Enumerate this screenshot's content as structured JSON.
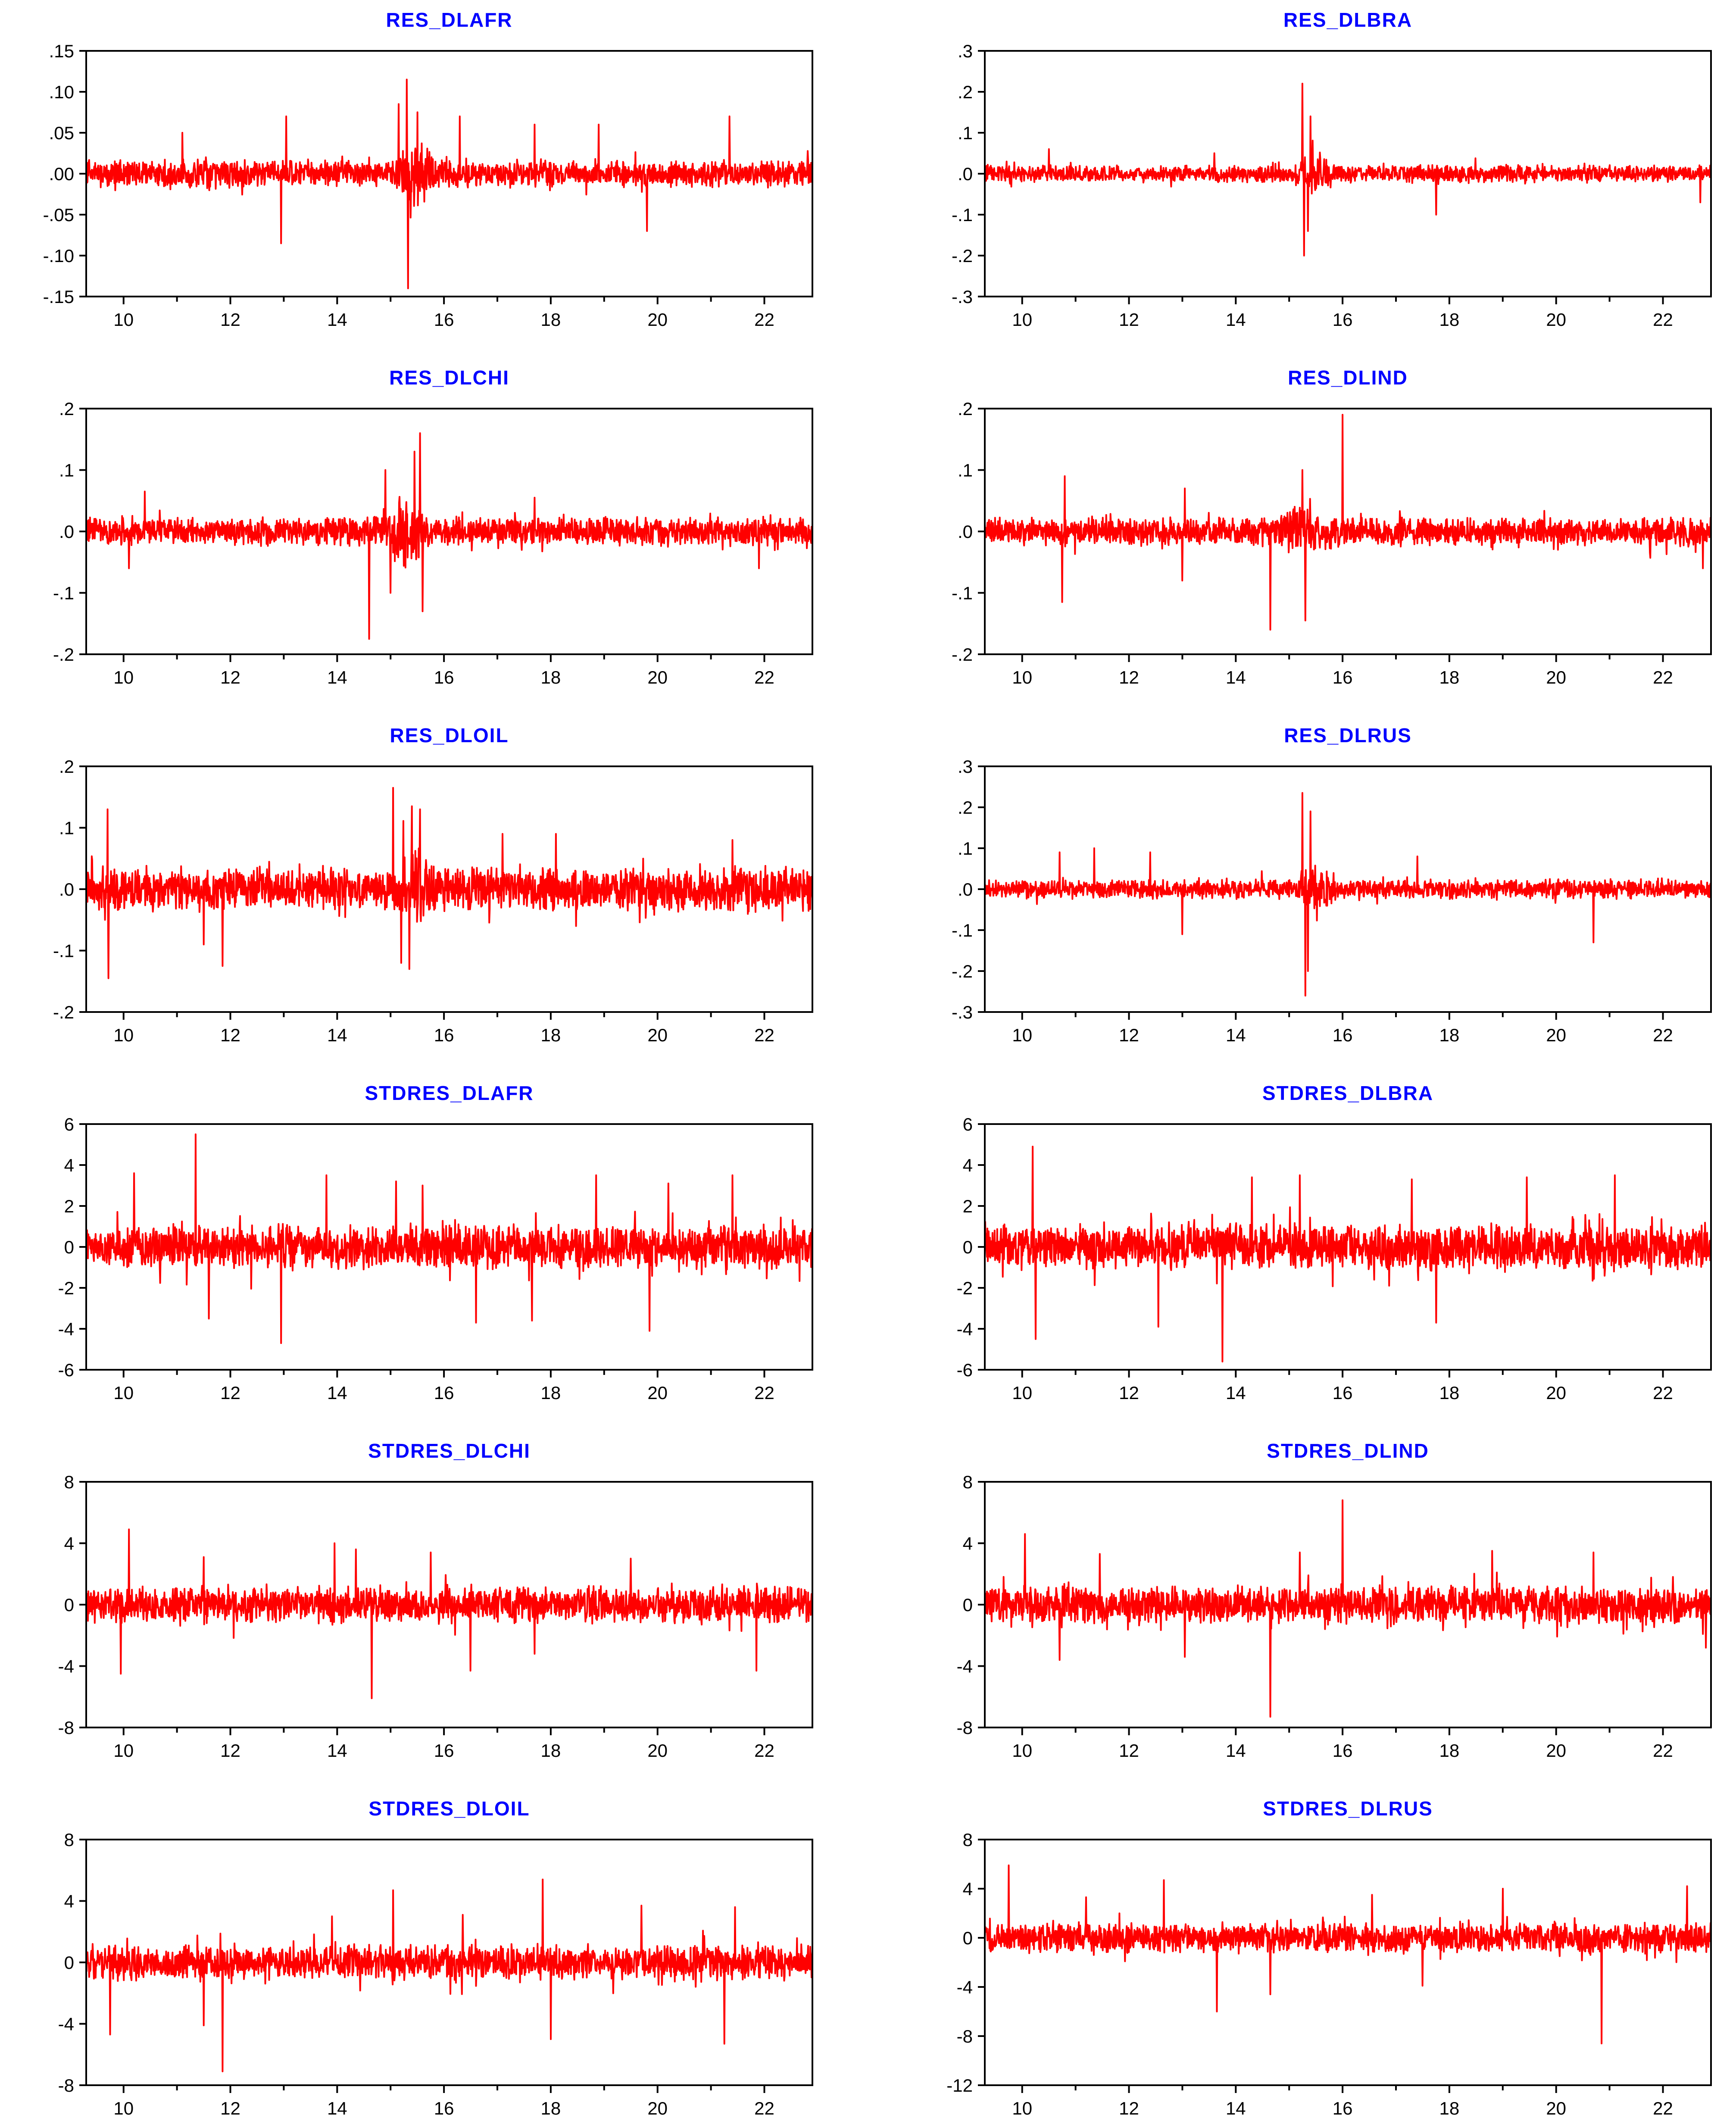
{
  "figure": {
    "colors": {
      "series": "#ff0000",
      "title": "#0000ff",
      "axis": "#000000"
    }
  },
  "chart_data": [
    {
      "type": "line",
      "title": "RES_DLAFR",
      "ylim": [
        -0.15,
        0.15
      ],
      "yticks": [
        0.15,
        0.1,
        0.05,
        0.0,
        -0.05,
        -0.1,
        -0.15
      ],
      "ytick_labels": [
        ".15",
        ".10",
        ".05",
        ".00",
        "-.05",
        "-.10",
        "-.15"
      ],
      "xlim": [
        2009.3,
        2022.9
      ],
      "xticks": [
        2010,
        2012,
        2014,
        2016,
        2018,
        2020,
        2022
      ],
      "xtick_labels": [
        "10",
        "12",
        "14",
        "16",
        "18",
        "20",
        "22"
      ],
      "series": [
        {
          "base": 0.013,
          "min": -0.14,
          "max": 0.115,
          "spikes": [
            [
              2015.3,
              0.115
            ],
            [
              2015.33,
              -0.14
            ],
            [
              2015.15,
              0.085
            ],
            [
              2015.5,
              0.075
            ],
            [
              2013.05,
              0.07
            ],
            [
              2012.95,
              -0.085
            ],
            [
              2016.3,
              0.07
            ],
            [
              2017.7,
              0.06
            ],
            [
              2019.8,
              -0.07
            ],
            [
              2021.35,
              0.07
            ],
            [
              2011.1,
              0.05
            ],
            [
              2018.9,
              0.06
            ]
          ],
          "clusters": [
            [
              2015.1,
              2015.9,
              3.5
            ]
          ]
        }
      ]
    },
    {
      "type": "line",
      "title": "RES_DLBRA",
      "ylim": [
        -0.3,
        0.3
      ],
      "yticks": [
        0.3,
        0.2,
        0.1,
        0.0,
        -0.1,
        -0.2,
        -0.3
      ],
      "ytick_labels": [
        ".3",
        ".2",
        ".1",
        ".0",
        "-.1",
        "-.2",
        "-.3"
      ],
      "xlim": [
        2009.3,
        2022.9
      ],
      "xticks": [
        2010,
        2012,
        2014,
        2016,
        2018,
        2020,
        2022
      ],
      "xtick_labels": [
        "10",
        "12",
        "14",
        "16",
        "18",
        "20",
        "22"
      ],
      "series": [
        {
          "base": 0.016,
          "min": -0.2,
          "max": 0.22,
          "spikes": [
            [
              2015.25,
              0.22
            ],
            [
              2015.28,
              -0.2
            ],
            [
              2015.4,
              0.14
            ],
            [
              2015.35,
              -0.14
            ],
            [
              2010.5,
              0.06
            ],
            [
              2017.75,
              -0.1
            ],
            [
              2013.6,
              0.05
            ],
            [
              2022.7,
              -0.07
            ]
          ],
          "clusters": [
            [
              2015.1,
              2015.9,
              3.0
            ]
          ]
        }
      ]
    },
    {
      "type": "line",
      "title": "RES_DLCHI",
      "ylim": [
        -0.2,
        0.2
      ],
      "yticks": [
        0.2,
        0.1,
        0.0,
        -0.1,
        -0.2
      ],
      "ytick_labels": [
        ".2",
        ".1",
        ".0",
        "-.1",
        "-.2"
      ],
      "xlim": [
        2009.3,
        2022.9
      ],
      "xticks": [
        2010,
        2012,
        2014,
        2016,
        2018,
        2020,
        2022
      ],
      "xtick_labels": [
        "10",
        "12",
        "14",
        "16",
        "18",
        "20",
        "22"
      ],
      "series": [
        {
          "base": 0.018,
          "min": -0.175,
          "max": 0.16,
          "spikes": [
            [
              2014.6,
              -0.175
            ],
            [
              2015.55,
              0.16
            ],
            [
              2015.45,
              0.13
            ],
            [
              2015.6,
              -0.13
            ],
            [
              2014.9,
              0.1
            ],
            [
              2015.0,
              -0.1
            ],
            [
              2010.4,
              0.065
            ],
            [
              2010.1,
              -0.06
            ],
            [
              2021.9,
              -0.06
            ],
            [
              2017.7,
              0.055
            ]
          ],
          "clusters": [
            [
              2014.6,
              2015.9,
              2.6
            ]
          ]
        }
      ]
    },
    {
      "type": "line",
      "title": "RES_DLIND",
      "ylim": [
        -0.2,
        0.2
      ],
      "yticks": [
        0.2,
        0.1,
        0.0,
        -0.1,
        -0.2
      ],
      "ytick_labels": [
        ".2",
        ".1",
        ".0",
        "-.1",
        "-.2"
      ],
      "xlim": [
        2009.3,
        2022.9
      ],
      "xticks": [
        2010,
        2012,
        2014,
        2016,
        2018,
        2020,
        2022
      ],
      "xtick_labels": [
        "10",
        "12",
        "14",
        "16",
        "18",
        "20",
        "22"
      ],
      "series": [
        {
          "base": 0.018,
          "min": -0.16,
          "max": 0.19,
          "spikes": [
            [
              2016.0,
              0.19
            ],
            [
              2014.65,
              -0.16
            ],
            [
              2015.3,
              -0.145
            ],
            [
              2010.8,
              0.09
            ],
            [
              2010.75,
              -0.115
            ],
            [
              2013.05,
              0.07
            ],
            [
              2013.0,
              -0.08
            ],
            [
              2015.25,
              0.1
            ],
            [
              2022.75,
              -0.06
            ]
          ],
          "clusters": [
            [
              2014.6,
              2016.0,
              2.2
            ]
          ]
        }
      ]
    },
    {
      "type": "line",
      "title": "RES_DLOIL",
      "ylim": [
        -0.2,
        0.2
      ],
      "yticks": [
        0.2,
        0.1,
        0.0,
        -0.1,
        -0.2
      ],
      "ytick_labels": [
        ".2",
        ".1",
        ".0",
        "-.1",
        "-.2"
      ],
      "xlim": [
        2009.3,
        2022.9
      ],
      "xticks": [
        2010,
        2012,
        2014,
        2016,
        2018,
        2020,
        2022
      ],
      "xtick_labels": [
        "10",
        "12",
        "14",
        "16",
        "18",
        "20",
        "22"
      ],
      "series": [
        {
          "base": 0.028,
          "min": -0.145,
          "max": 0.165,
          "spikes": [
            [
              2015.05,
              0.165
            ],
            [
              2009.7,
              0.13
            ],
            [
              2009.72,
              -0.145
            ],
            [
              2011.85,
              -0.125
            ],
            [
              2015.4,
              0.135
            ],
            [
              2015.55,
              0.13
            ],
            [
              2015.35,
              -0.13
            ],
            [
              2015.2,
              -0.12
            ],
            [
              2017.1,
              0.09
            ],
            [
              2018.1,
              0.09
            ],
            [
              2021.4,
              0.08
            ],
            [
              2011.5,
              -0.09
            ]
          ],
          "clusters": [
            [
              2015.0,
              2015.9,
              2.5
            ]
          ]
        }
      ]
    },
    {
      "type": "line",
      "title": "RES_DLRUS",
      "ylim": [
        -0.3,
        0.3
      ],
      "yticks": [
        0.3,
        0.2,
        0.1,
        0.0,
        -0.1,
        -0.2,
        -0.3
      ],
      "ytick_labels": [
        ".3",
        ".2",
        ".1",
        ".0",
        "-.1",
        "-.2",
        "-.3"
      ],
      "xlim": [
        2009.3,
        2022.9
      ],
      "xticks": [
        2010,
        2012,
        2014,
        2016,
        2018,
        2020,
        2022
      ],
      "xtick_labels": [
        "10",
        "12",
        "14",
        "16",
        "18",
        "20",
        "22"
      ],
      "series": [
        {
          "base": 0.018,
          "min": -0.265,
          "max": 0.235,
          "spikes": [
            [
              2015.25,
              0.235
            ],
            [
              2015.3,
              -0.26
            ],
            [
              2015.4,
              0.19
            ],
            [
              2015.35,
              -0.2
            ],
            [
              2010.7,
              0.09
            ],
            [
              2011.35,
              0.1
            ],
            [
              2012.4,
              0.09
            ],
            [
              2013.0,
              -0.11
            ],
            [
              2020.7,
              -0.13
            ],
            [
              2017.4,
              0.08
            ]
          ],
          "clusters": [
            [
              2015.1,
              2015.9,
              3.0
            ]
          ]
        }
      ]
    },
    {
      "type": "line",
      "title": "STDRES_DLAFR",
      "ylim": [
        -6,
        6
      ],
      "yticks": [
        6,
        4,
        2,
        0,
        -2,
        -4,
        -6
      ],
      "ytick_labels": [
        "6",
        "4",
        "2",
        "0",
        "-2",
        "-4",
        "-6"
      ],
      "xlim": [
        2009.3,
        2022.9
      ],
      "xticks": [
        2010,
        2012,
        2014,
        2016,
        2018,
        2020,
        2022
      ],
      "xtick_labels": [
        "10",
        "12",
        "14",
        "16",
        "18",
        "20",
        "22"
      ],
      "series": [
        {
          "base": 0.85,
          "min": -4.7,
          "max": 5.5,
          "spikes": [
            [
              2011.35,
              5.5
            ],
            [
              2012.95,
              -4.7
            ],
            [
              2019.85,
              -4.1
            ],
            [
              2010.2,
              3.6
            ],
            [
              2013.8,
              3.5
            ],
            [
              2015.1,
              3.2
            ],
            [
              2016.6,
              -3.7
            ],
            [
              2017.65,
              -3.6
            ],
            [
              2021.4,
              3.5
            ],
            [
              2015.6,
              3.0
            ],
            [
              2018.85,
              3.5
            ],
            [
              2020.2,
              3.1
            ],
            [
              2011.6,
              -3.5
            ]
          ],
          "clusters": []
        }
      ]
    },
    {
      "type": "line",
      "title": "STDRES_DLBRA",
      "ylim": [
        -6,
        6
      ],
      "yticks": [
        6,
        4,
        2,
        0,
        -2,
        -4,
        -6
      ],
      "ytick_labels": [
        "6",
        "4",
        "2",
        "0",
        "-2",
        "-4",
        "-6"
      ],
      "xlim": [
        2009.3,
        2022.9
      ],
      "xticks": [
        2010,
        2012,
        2014,
        2016,
        2018,
        2020,
        2022
      ],
      "xtick_labels": [
        "10",
        "12",
        "14",
        "16",
        "18",
        "20",
        "22"
      ],
      "series": [
        {
          "base": 0.9,
          "min": -5.6,
          "max": 4.9,
          "spikes": [
            [
              2010.2,
              4.9
            ],
            [
              2010.25,
              -4.5
            ],
            [
              2013.75,
              -5.6
            ],
            [
              2017.3,
              3.3
            ],
            [
              2017.75,
              -3.7
            ],
            [
              2012.55,
              -3.9
            ],
            [
              2015.2,
              3.5
            ],
            [
              2021.1,
              3.5
            ],
            [
              2019.45,
              3.4
            ],
            [
              2014.3,
              3.4
            ]
          ],
          "clusters": []
        }
      ]
    },
    {
      "type": "line",
      "title": "STDRES_DLCHI",
      "ylim": [
        -8,
        8
      ],
      "yticks": [
        8,
        4,
        0,
        -4,
        -8
      ],
      "ytick_labels": [
        "8",
        "4",
        "0",
        "-4",
        "-8"
      ],
      "xlim": [
        2009.3,
        2022.9
      ],
      "xticks": [
        2010,
        2012,
        2014,
        2016,
        2018,
        2020,
        2022
      ],
      "xtick_labels": [
        "10",
        "12",
        "14",
        "16",
        "18",
        "20",
        "22"
      ],
      "series": [
        {
          "base": 0.95,
          "min": -6.1,
          "max": 4.9,
          "spikes": [
            [
              2010.1,
              4.9
            ],
            [
              2009.95,
              -4.5
            ],
            [
              2014.65,
              -6.1
            ],
            [
              2016.5,
              -4.3
            ],
            [
              2013.95,
              4.0
            ],
            [
              2014.35,
              3.6
            ],
            [
              2015.75,
              3.4
            ],
            [
              2021.85,
              -4.3
            ],
            [
              2011.5,
              3.1
            ],
            [
              2017.7,
              -3.2
            ],
            [
              2019.5,
              3.0
            ]
          ],
          "clusters": []
        }
      ]
    },
    {
      "type": "line",
      "title": "STDRES_DLIND",
      "ylim": [
        -8,
        8
      ],
      "yticks": [
        8,
        4,
        0,
        -4,
        -8
      ],
      "ytick_labels": [
        "8",
        "4",
        "0",
        "-4",
        "-8"
      ],
      "xlim": [
        2009.3,
        2022.9
      ],
      "xticks": [
        2010,
        2012,
        2014,
        2016,
        2018,
        2020,
        2022
      ],
      "xtick_labels": [
        "10",
        "12",
        "14",
        "16",
        "18",
        "20",
        "22"
      ],
      "series": [
        {
          "base": 0.95,
          "min": -7.3,
          "max": 6.8,
          "spikes": [
            [
              2016.0,
              6.8
            ],
            [
              2014.65,
              -7.3
            ],
            [
              2010.05,
              4.6
            ],
            [
              2010.7,
              -3.6
            ],
            [
              2011.45,
              3.3
            ],
            [
              2018.8,
              3.5
            ],
            [
              2020.7,
              3.4
            ],
            [
              2015.2,
              3.4
            ],
            [
              2013.05,
              -3.4
            ],
            [
              2022.8,
              -2.8
            ]
          ],
          "clusters": []
        }
      ]
    },
    {
      "type": "line",
      "title": "STDRES_DLOIL",
      "ylim": [
        -8,
        8
      ],
      "yticks": [
        8,
        4,
        0,
        -4,
        -8
      ],
      "ytick_labels": [
        "8",
        "4",
        "0",
        "-4",
        "-8"
      ],
      "xlim": [
        2009.3,
        2022.9
      ],
      "xticks": [
        2010,
        2012,
        2014,
        2016,
        2018,
        2020,
        2022
      ],
      "xtick_labels": [
        "10",
        "12",
        "14",
        "16",
        "18",
        "20",
        "22"
      ],
      "series": [
        {
          "base": 0.9,
          "min": -7.1,
          "max": 5.4,
          "spikes": [
            [
              2017.85,
              5.4
            ],
            [
              2015.05,
              4.7
            ],
            [
              2011.85,
              -7.1
            ],
            [
              2009.75,
              -4.7
            ],
            [
              2011.5,
              -4.1
            ],
            [
              2018.0,
              -5.0
            ],
            [
              2021.25,
              -5.3
            ],
            [
              2019.7,
              3.7
            ],
            [
              2016.35,
              3.1
            ],
            [
              2021.45,
              3.6
            ],
            [
              2013.9,
              3.0
            ]
          ],
          "clusters": []
        }
      ]
    },
    {
      "type": "line",
      "title": "STDRES_DLRUS",
      "ylim": [
        -12,
        8
      ],
      "yticks": [
        8,
        4,
        0,
        -4,
        -8,
        -12
      ],
      "ytick_labels": [
        "8",
        "4",
        "0",
        "-4",
        "-8",
        "-12"
      ],
      "xlim": [
        2009.3,
        2022.9
      ],
      "xticks": [
        2010,
        2012,
        2014,
        2016,
        2018,
        2020,
        2022
      ],
      "xtick_labels": [
        "10",
        "12",
        "14",
        "16",
        "18",
        "20",
        "22"
      ],
      "series": [
        {
          "base": 0.95,
          "min": -8.6,
          "max": 5.9,
          "spikes": [
            [
              2009.75,
              5.9
            ],
            [
              2012.65,
              4.7
            ],
            [
              2020.85,
              -8.6
            ],
            [
              2013.65,
              -6.0
            ],
            [
              2014.65,
              -4.6
            ],
            [
              2019.0,
              4.0
            ],
            [
              2022.45,
              4.2
            ],
            [
              2011.2,
              3.3
            ],
            [
              2016.55,
              3.5
            ],
            [
              2017.5,
              -3.9
            ]
          ],
          "clusters": []
        }
      ]
    }
  ]
}
